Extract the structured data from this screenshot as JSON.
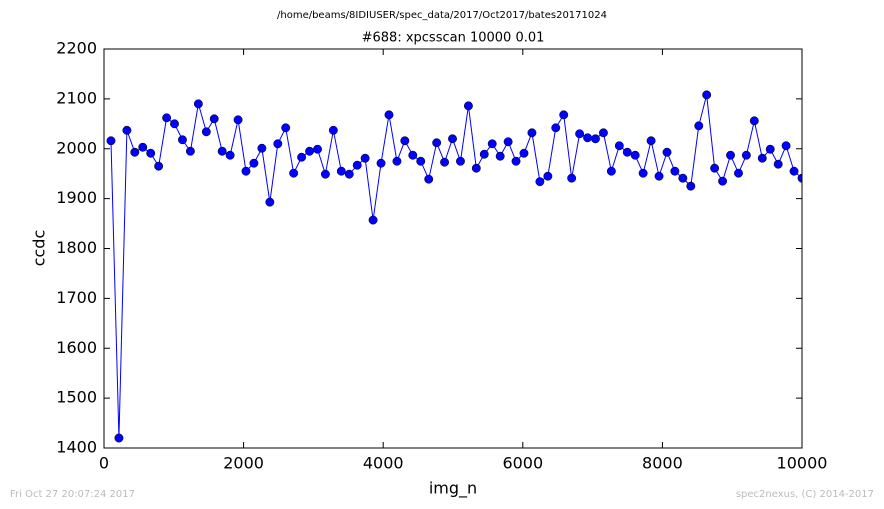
{
  "chart_data": {
    "type": "line",
    "suptitle": "/home/beams/8IDIUSER/spec_data/2017/Oct2017/bates20171024",
    "title": "#688: xpcsscan 10000 0.01",
    "x_label": "img_n",
    "y_label": "ccdc",
    "footer_left": "Fri Oct 27 20:07:24 2017",
    "footer_right": "spec2nexus, (C) 2014-2017",
    "color": "#0000ff",
    "x": [
      100,
      214,
      328,
      441,
      555,
      669,
      783,
      897,
      1010,
      1124,
      1238,
      1352,
      1466,
      1579,
      1693,
      1807,
      1921,
      2034,
      2148,
      2262,
      2376,
      2490,
      2603,
      2717,
      2831,
      2945,
      3059,
      3172,
      3286,
      3400,
      3514,
      3628,
      3741,
      3855,
      3969,
      4083,
      4197,
      4310,
      4424,
      4538,
      4652,
      4766,
      4879,
      4993,
      5107,
      5221,
      5334,
      5448,
      5562,
      5676,
      5790,
      5903,
      6017,
      6131,
      6245,
      6359,
      6472,
      6586,
      6700,
      6814,
      6928,
      7041,
      7155,
      7269,
      7383,
      7497,
      7610,
      7724,
      7838,
      7952,
      8066,
      8179,
      8293,
      8407,
      8521,
      8634,
      8748,
      8862,
      8976,
      9090,
      9203,
      9317,
      9431,
      9545,
      9659,
      9772,
      9886,
      10000
    ],
    "values": [
      2016,
      1420,
      2037,
      1993,
      2003,
      1991,
      1965,
      2062,
      2050,
      2018,
      1995,
      2090,
      2034,
      2060,
      1995,
      1987,
      2058,
      1955,
      1971,
      2001,
      1893,
      2010,
      2042,
      1951,
      1983,
      1995,
      1999,
      1949,
      2037,
      1955,
      1949,
      1967,
      1981,
      1857,
      1971,
      2068,
      1975,
      2016,
      1987,
      1975,
      1939,
      2012,
      1973,
      2020,
      1975,
      2086,
      1961,
      1989,
      2010,
      1985,
      2014,
      1975,
      1991,
      2032,
      1934,
      1945,
      2042,
      2068,
      1941,
      2030,
      2022,
      2020,
      2032,
      1955,
      2006,
      1993,
      1987,
      1951,
      2016,
      1945,
      1993,
      1955,
      1941,
      1925,
      2046,
      2108,
      1961,
      1935,
      1987,
      1951,
      1987,
      2056,
      1981,
      1999,
      1969,
      2006,
      1955,
      1941
    ],
    "xlim": [
      0,
      10000
    ],
    "xticks": [
      0,
      2000,
      4000,
      6000,
      8000,
      10000
    ],
    "ylim": [
      1400,
      2200
    ],
    "yticks": [
      1400,
      1500,
      1600,
      1700,
      1800,
      1900,
      2000,
      2100,
      2200
    ]
  }
}
